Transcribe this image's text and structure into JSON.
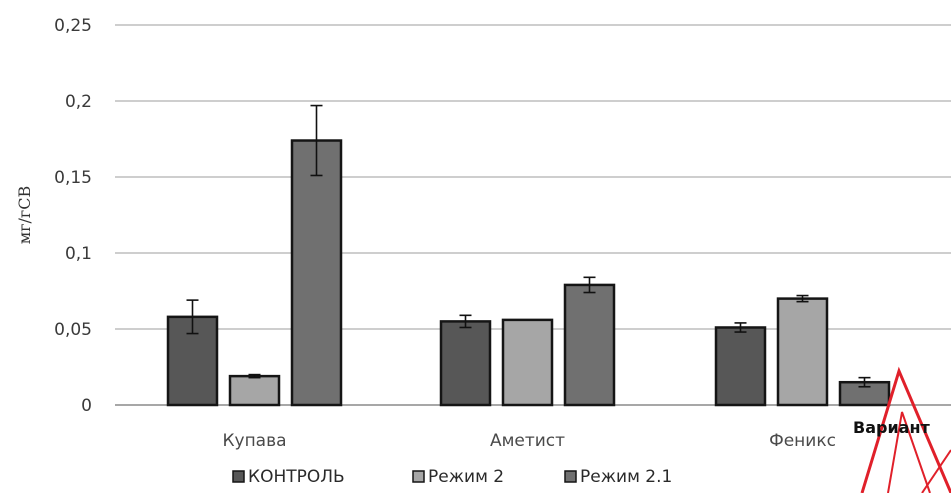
{
  "chart_data": {
    "type": "bar",
    "ylabel": "мг/гСВ",
    "ylim": [
      0,
      0.25
    ],
    "yticks": [
      "0",
      "0,05",
      "0,1",
      "0,15",
      "0,2",
      "0,25"
    ],
    "ytick_values": [
      0,
      0.05,
      0.1,
      0.15,
      0.2,
      0.25
    ],
    "grid": true,
    "legend_position": "bottom",
    "categories": [
      "Купава",
      "Аметист",
      "Феникс"
    ],
    "series": [
      {
        "name": "КОНТРОЛЬ",
        "color": "#575757",
        "values": [
          0.058,
          0.055,
          0.051
        ],
        "errors": [
          0.011,
          0.004,
          0.003
        ]
      },
      {
        "name": "Режим 2",
        "color": "#a6a6a6",
        "values": [
          0.019,
          0.056,
          0.07
        ],
        "errors": [
          0.001,
          0.0,
          0.002
        ]
      },
      {
        "name": "Режим 2.1",
        "color": "#707070",
        "values": [
          0.174,
          0.079,
          0.015
        ],
        "errors": [
          0.023,
          0.005,
          0.003
        ]
      }
    ],
    "overlay_label": "Вариант"
  }
}
